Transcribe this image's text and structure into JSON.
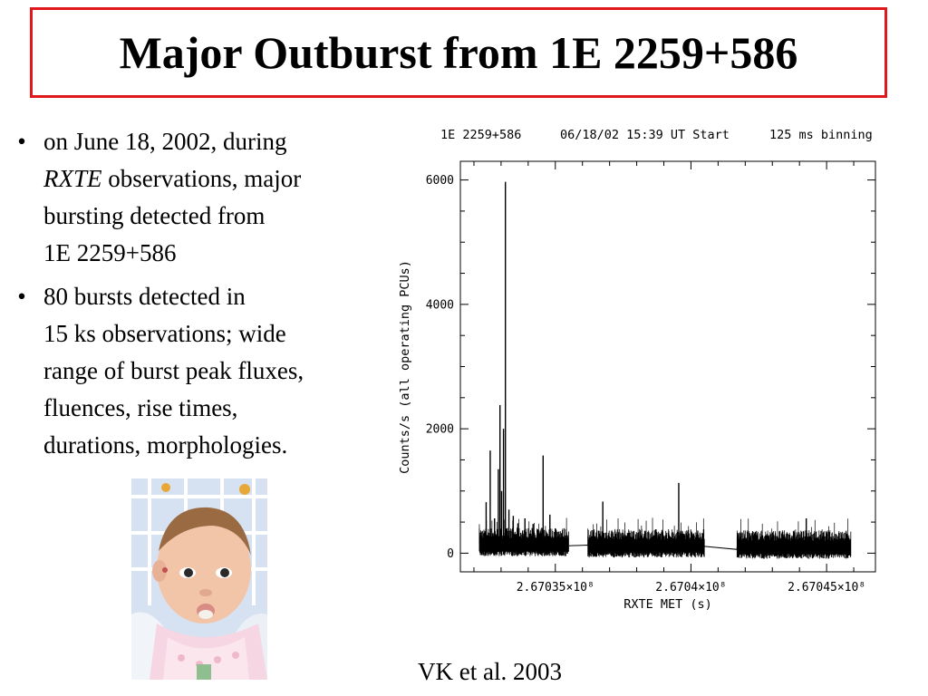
{
  "slide": {
    "title": "Major Outburst from 1E 2259+586",
    "bullets": [
      {
        "symbol": "•",
        "lines": [
          "on June 18, 2002, during",
          "RXTE observations, major",
          "bursting detected from",
          "1E 2259+586"
        ]
      },
      {
        "symbol": "•",
        "lines": [
          "80 bursts detected in",
          "15 ks observations; wide",
          "range of burst peak fluxes,",
          "fluences, rise times,",
          "durations, morphologies."
        ]
      }
    ],
    "credit": "VK et al. 2003"
  },
  "colors": {
    "title_border": "#e0181b",
    "plot_ink": "#000000"
  },
  "chart_data": {
    "type": "line",
    "header": {
      "source": "1E 2259+586",
      "start": "06/18/02 15:39 UT Start",
      "binning": "125 ms binning"
    },
    "xlabel": "RXTE MET (s)",
    "ylabel": "Counts/s (all operating PCUs)",
    "xlim": [
      267031500,
      267046800
    ],
    "ylim": [
      -300,
      6300
    ],
    "x_ticks": [
      {
        "value": 267035000,
        "label": "2.67035×10⁸"
      },
      {
        "value": 267040000,
        "label": "2.6704×10⁸"
      },
      {
        "value": 267045000,
        "label": "2.67045×10⁸"
      }
    ],
    "y_ticks": [
      {
        "value": 0,
        "label": "0"
      },
      {
        "value": 2000,
        "label": "2000"
      },
      {
        "value": 4000,
        "label": "4000"
      },
      {
        "value": 6000,
        "label": "6000"
      }
    ],
    "series": [
      {
        "baseline_segments": [
          {
            "start": 267032200,
            "end": 267035500,
            "level": 150
          },
          {
            "start": 267036200,
            "end": 267040500,
            "level": 130
          },
          {
            "start": 267041700,
            "end": 267045900,
            "level": 110
          }
        ],
        "gap_points": [
          [
            267035500,
            120
          ],
          [
            267036200,
            130
          ],
          [
            267040500,
            110
          ],
          [
            267041700,
            60
          ],
          [
            267041700,
            100
          ]
        ],
        "bursts": [
          {
            "t": 267032450,
            "peak": 820
          },
          {
            "t": 267032600,
            "peak": 1650
          },
          {
            "t": 267032760,
            "peak": 560
          },
          {
            "t": 267032900,
            "peak": 1350
          },
          {
            "t": 267032960,
            "peak": 2380
          },
          {
            "t": 267033020,
            "peak": 1000
          },
          {
            "t": 267033090,
            "peak": 2000
          },
          {
            "t": 267033160,
            "peak": 5970
          },
          {
            "t": 267033290,
            "peak": 700
          },
          {
            "t": 267033450,
            "peak": 600
          },
          {
            "t": 267033620,
            "peak": 480
          },
          {
            "t": 267033880,
            "peak": 560
          },
          {
            "t": 267034180,
            "peak": 470
          },
          {
            "t": 267034550,
            "peak": 1570
          },
          {
            "t": 267034800,
            "peak": 620
          },
          {
            "t": 267035000,
            "peak": 400
          },
          {
            "t": 267036750,
            "peak": 830
          },
          {
            "t": 267037200,
            "peak": 350
          },
          {
            "t": 267038300,
            "peak": 360
          },
          {
            "t": 267039550,
            "peak": 1130
          },
          {
            "t": 267039900,
            "peak": 370
          },
          {
            "t": 267044250,
            "peak": 560
          },
          {
            "t": 267045100,
            "peak": 340
          }
        ]
      }
    ]
  }
}
